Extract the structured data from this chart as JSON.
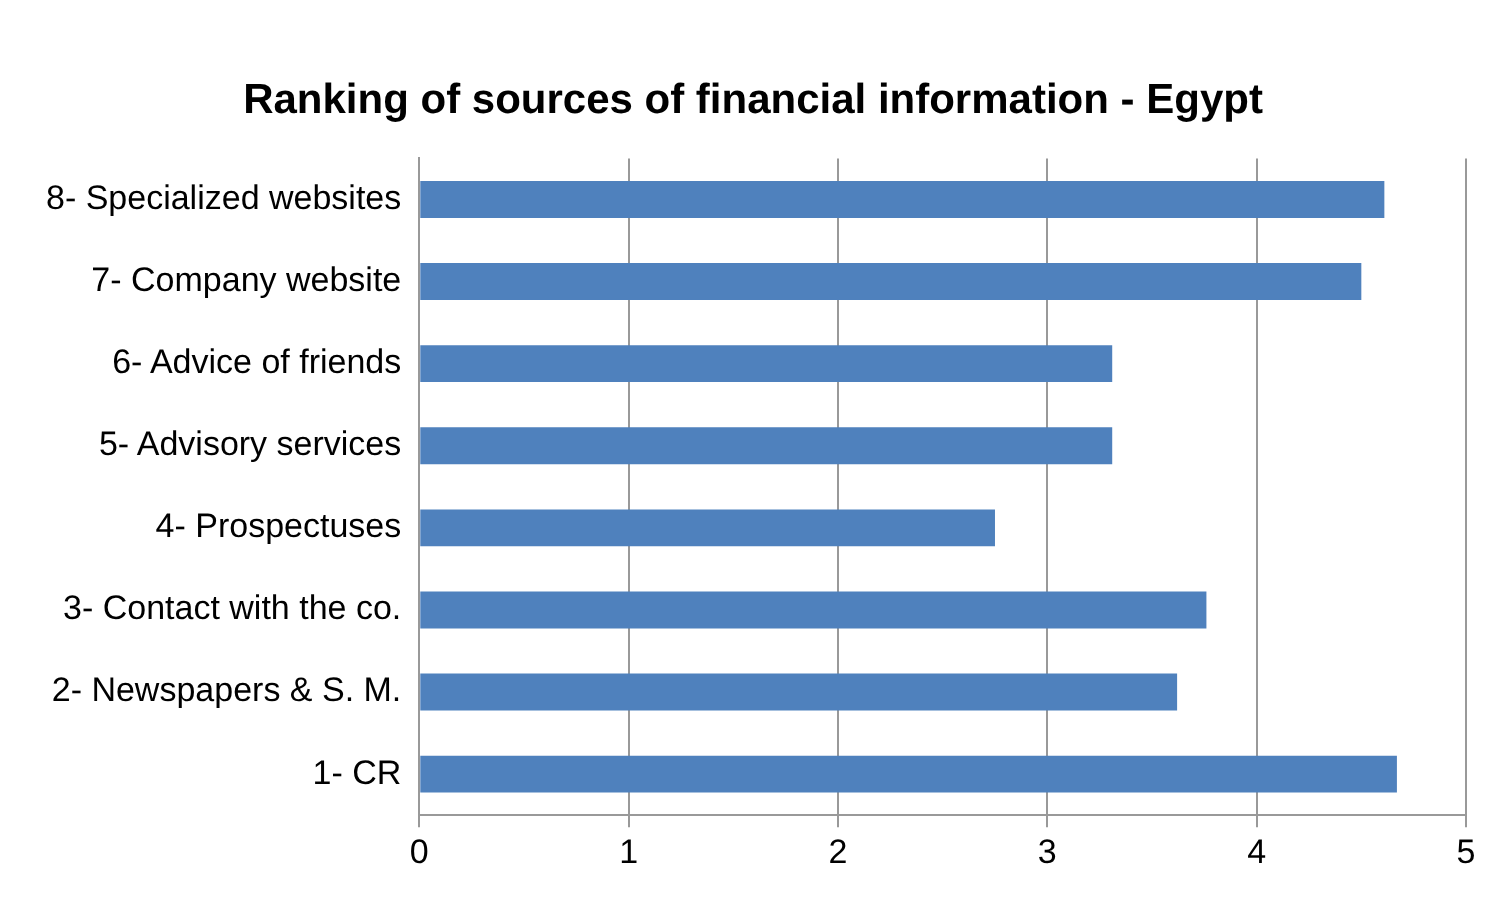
{
  "chart_data": {
    "type": "bar",
    "orientation": "horizontal",
    "title": "Ranking of sources of financial information - Egypt",
    "categories": [
      "8- Specialized websites",
      "7- Company website",
      "6- Advice of friends",
      "5- Advisory services",
      "4- Prospectuses",
      "3- Contact with the co.",
      "2- Newspapers & S. M.",
      "1- CR"
    ],
    "values": [
      4.61,
      4.5,
      3.31,
      3.31,
      2.75,
      3.76,
      3.62,
      4.67
    ],
    "color": "#4f81bd",
    "xlim": [
      0,
      5
    ],
    "xticks": [
      0,
      1,
      2,
      3,
      4,
      5
    ],
    "grid": "x",
    "legend": false
  }
}
